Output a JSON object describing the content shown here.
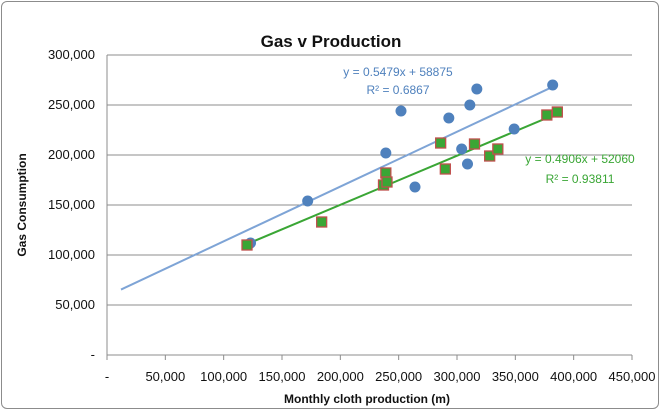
{
  "chart_data": {
    "type": "scatter",
    "title": "Gas v Production",
    "xlabel": "Monthly cloth production (m)",
    "ylabel": "Gas Consumption",
    "xlim": [
      0,
      450000
    ],
    "ylim": [
      0,
      300000
    ],
    "x_ticks": [
      0,
      50000,
      100000,
      150000,
      200000,
      250000,
      300000,
      350000,
      400000,
      450000
    ],
    "x_tick_labels": [
      "-",
      "50,000",
      "100,000",
      "150,000",
      "200,000",
      "250,000",
      "300,000",
      "350,000",
      "400,000",
      "450,000"
    ],
    "y_ticks": [
      0,
      50000,
      100000,
      150000,
      200000,
      250000,
      300000
    ],
    "y_tick_labels": [
      "-",
      "50,000",
      "100,000",
      "150,000",
      "200,000",
      "250,000",
      "300,000"
    ],
    "grid": true,
    "series": [
      {
        "marker": "circle",
        "color": "#4f81bd",
        "points": [
          [
            123000,
            112000
          ],
          [
            172000,
            154000
          ],
          [
            239000,
            202000
          ],
          [
            252000,
            244000
          ],
          [
            264000,
            168000
          ],
          [
            293000,
            237000
          ],
          [
            304000,
            206000
          ],
          [
            309000,
            191000
          ],
          [
            311000,
            250000
          ],
          [
            317000,
            266000
          ],
          [
            349000,
            226000
          ],
          [
            382000,
            270000
          ]
        ],
        "trendline": {
          "slope": 0.5479,
          "intercept": 58875,
          "x_range": [
            12000,
            382000
          ],
          "color": "#7ea4d6"
        },
        "equation": "y = 0.5479x + 58875",
        "r2": "R² = 0.6867"
      },
      {
        "marker": "square",
        "color": "#3aa635",
        "edge_color": "#c0504d",
        "points": [
          [
            120000,
            110000
          ],
          [
            184000,
            133000
          ],
          [
            237000,
            170000
          ],
          [
            239000,
            182000
          ],
          [
            240000,
            173000
          ],
          [
            286000,
            212000
          ],
          [
            290000,
            186000
          ],
          [
            315000,
            211000
          ],
          [
            328000,
            199000
          ],
          [
            335000,
            206000
          ],
          [
            377000,
            240000
          ],
          [
            386000,
            243000
          ]
        ],
        "trendline": {
          "slope": 0.4906,
          "intercept": 52060,
          "x_range": [
            120000,
            386000
          ],
          "color": "#3aa635"
        },
        "equation": "y = 0.4906x + 52060",
        "r2": "R² = 0.93811"
      }
    ]
  }
}
